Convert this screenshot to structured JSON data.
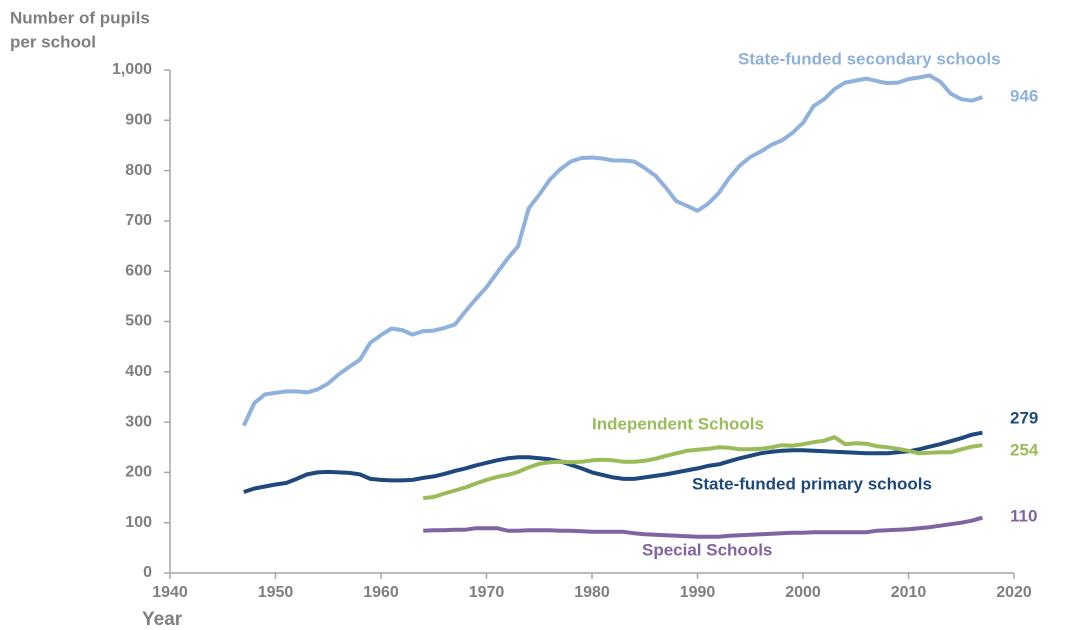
{
  "chart_data": {
    "type": "line",
    "y_axis_title": [
      "Number of pupils",
      "per school"
    ],
    "x_axis_title": "Year",
    "xlim": [
      1940,
      2020
    ],
    "xticks": [
      1940,
      1950,
      1960,
      1970,
      1980,
      1990,
      2000,
      2010,
      2020
    ],
    "ylim": [
      0,
      1000
    ],
    "yticks": [
      0,
      100,
      200,
      300,
      400,
      500,
      600,
      700,
      800,
      900,
      {
        "value": 1000,
        "label": "1,000"
      }
    ],
    "grid": false,
    "x": [
      1947,
      1948,
      1949,
      1950,
      1951,
      1952,
      1953,
      1954,
      1955,
      1956,
      1957,
      1958,
      1959,
      1960,
      1961,
      1962,
      1963,
      1964,
      1965,
      1966,
      1967,
      1968,
      1969,
      1970,
      1971,
      1972,
      1973,
      1974,
      1975,
      1976,
      1977,
      1978,
      1979,
      1980,
      1981,
      1982,
      1983,
      1984,
      1985,
      1986,
      1987,
      1988,
      1989,
      1990,
      1991,
      1992,
      1993,
      1994,
      1995,
      1996,
      1997,
      1998,
      1999,
      2000,
      2001,
      2002,
      2003,
      2004,
      2005,
      2006,
      2007,
      2008,
      2009,
      2010,
      2011,
      2012,
      2013,
      2014,
      2015,
      2016,
      2017
    ],
    "series": [
      {
        "name": "State-funded secondary schools",
        "color": "#8fb1dc",
        "values": [
          293,
          338,
          355,
          358,
          361,
          361,
          359,
          365,
          377,
          395,
          410,
          424,
          458,
          473,
          486,
          483,
          474,
          481,
          482,
          487,
          494,
          520,
          545,
          568,
          597,
          625,
          650,
          725,
          752,
          782,
          803,
          818,
          825,
          826,
          824,
          820,
          820,
          818,
          805,
          790,
          766,
          739,
          730,
          720,
          734,
          755,
          785,
          810,
          827,
          838,
          851,
          860,
          875,
          895,
          928,
          942,
          962,
          975,
          979,
          983,
          978,
          974,
          975,
          982,
          985,
          989,
          977,
          953,
          942,
          939,
          946
        ]
      },
      {
        "name": "State-funded primary schools",
        "color": "#1f497d",
        "values": [
          161,
          168,
          172,
          176,
          179,
          187,
          196,
          200,
          201,
          200,
          199,
          196,
          187,
          185,
          184,
          184,
          185,
          189,
          192,
          197,
          203,
          208,
          214,
          219,
          224,
          228,
          230,
          230,
          228,
          226,
          222,
          215,
          208,
          200,
          195,
          190,
          187,
          187,
          190,
          193,
          196,
          200,
          204,
          208,
          213,
          216,
          222,
          228,
          233,
          238,
          241,
          243,
          244,
          244,
          243,
          242,
          241,
          240,
          239,
          238,
          238,
          238,
          240,
          242,
          246,
          251,
          256,
          262,
          268,
          275,
          279
        ]
      },
      {
        "name": "Independent Schools",
        "color": "#9bbb59",
        "values": [
          null,
          null,
          null,
          null,
          null,
          null,
          null,
          null,
          null,
          null,
          null,
          null,
          null,
          null,
          null,
          null,
          null,
          149,
          151,
          158,
          164,
          170,
          178,
          185,
          191,
          195,
          201,
          210,
          217,
          220,
          221,
          220,
          221,
          224,
          225,
          224,
          221,
          221,
          223,
          227,
          233,
          238,
          243,
          245,
          247,
          250,
          249,
          246,
          246,
          247,
          250,
          254,
          253,
          256,
          260,
          263,
          270,
          256,
          258,
          257,
          252,
          250,
          247,
          243,
          238,
          239,
          240,
          240,
          246,
          251,
          254
        ]
      },
      {
        "name": "Special Schools",
        "color": "#8064a2",
        "values": [
          null,
          null,
          null,
          null,
          null,
          null,
          null,
          null,
          null,
          null,
          null,
          null,
          null,
          null,
          null,
          null,
          null,
          84,
          85,
          85,
          86,
          86,
          89,
          89,
          89,
          84,
          84,
          85,
          85,
          85,
          84,
          84,
          83,
          82,
          82,
          82,
          82,
          79,
          77,
          76,
          75,
          74,
          73,
          72,
          72,
          72,
          74,
          75,
          76,
          77,
          78,
          79,
          80,
          80,
          81,
          81,
          81,
          81,
          81,
          81,
          84,
          85,
          86,
          87,
          89,
          91,
          94,
          97,
          100,
          104,
          110
        ]
      }
    ]
  }
}
